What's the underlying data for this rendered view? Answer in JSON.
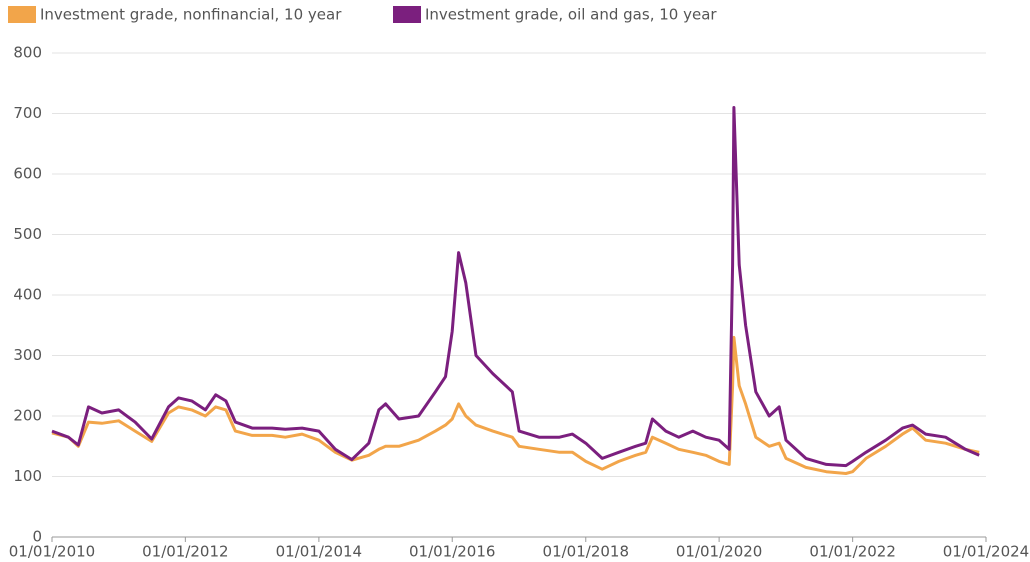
{
  "chart_data": {
    "type": "line",
    "x": [
      "2010-01-01",
      "2010-04-01",
      "2010-05-25",
      "2010-07-20",
      "2010-10-01",
      "2011-01-01",
      "2011-04-01",
      "2011-07-01",
      "2011-10-01",
      "2011-11-25",
      "2012-02-05",
      "2012-04-20",
      "2012-06-15",
      "2012-08-10",
      "2012-10-01",
      "2013-01-01",
      "2013-04-20",
      "2013-07-01",
      "2013-10-01",
      "2014-01-01",
      "2014-04-01",
      "2014-07-01",
      "2014-10-01",
      "2014-11-25",
      "2015-01-01",
      "2015-03-15",
      "2015-07-01",
      "2015-10-01",
      "2015-11-25",
      "2016-01-01",
      "2016-02-05",
      "2016-03-15",
      "2016-05-10",
      "2016-08-10",
      "2016-11-25",
      "2017-01-01",
      "2017-04-20",
      "2017-08-10",
      "2017-10-20",
      "2018-01-01",
      "2018-04-01",
      "2018-07-01",
      "2018-10-01",
      "2018-11-25",
      "2019-01-01",
      "2019-03-15",
      "2019-05-25",
      "2019-08-10",
      "2019-10-20",
      "2020-01-01",
      "2020-02-25",
      "2020-03-15",
      "2020-03-22",
      "2020-04-20",
      "2020-05-25",
      "2020-07-20",
      "2020-10-01",
      "2020-11-25",
      "2021-01-01",
      "2021-04-20",
      "2021-08-10",
      "2021-11-25",
      "2022-01-01",
      "2022-03-15",
      "2022-07-01",
      "2022-10-01",
      "2022-11-25",
      "2023-02-05",
      "2023-05-25",
      "2023-09-10",
      "2023-11-25"
    ],
    "series": [
      {
        "name": "Investment grade, nonfinancial, 10 year",
        "color": "#f2a54a",
        "values": [
          172,
          165,
          150,
          190,
          188,
          192,
          175,
          158,
          205,
          215,
          210,
          200,
          215,
          210,
          175,
          168,
          168,
          165,
          170,
          160,
          140,
          127,
          135,
          145,
          150,
          150,
          160,
          175,
          185,
          195,
          220,
          200,
          185,
          175,
          165,
          150,
          145,
          140,
          140,
          125,
          112,
          125,
          135,
          140,
          165,
          155,
          145,
          140,
          135,
          125,
          120,
          250,
          330,
          250,
          220,
          165,
          150,
          155,
          130,
          115,
          108,
          105,
          108,
          130,
          150,
          170,
          180,
          160,
          155,
          145,
          140
        ]
      },
      {
        "name": "Investment grade, oil and gas, 10 year",
        "color": "#7b1f7e",
        "values": [
          175,
          165,
          152,
          215,
          205,
          210,
          190,
          162,
          215,
          230,
          225,
          210,
          235,
          225,
          190,
          180,
          180,
          178,
          180,
          175,
          145,
          128,
          155,
          210,
          220,
          195,
          200,
          240,
          265,
          340,
          470,
          420,
          300,
          270,
          240,
          175,
          165,
          165,
          170,
          155,
          130,
          140,
          150,
          155,
          195,
          175,
          165,
          175,
          165,
          160,
          145,
          450,
          710,
          450,
          350,
          240,
          200,
          215,
          160,
          130,
          120,
          118,
          125,
          140,
          160,
          180,
          185,
          170,
          165,
          145,
          135
        ]
      }
    ],
    "xlim": [
      "2010-01-01",
      "2024-01-01"
    ],
    "xticks": [
      {
        "value": "2010-01-01",
        "label": "01/01/2010"
      },
      {
        "value": "2012-01-01",
        "label": "01/01/2012"
      },
      {
        "value": "2014-01-01",
        "label": "01/01/2014"
      },
      {
        "value": "2016-01-01",
        "label": "01/01/2016"
      },
      {
        "value": "2018-01-01",
        "label": "01/01/2018"
      },
      {
        "value": "2020-01-01",
        "label": "01/01/2020"
      },
      {
        "value": "2022-01-01",
        "label": "01/01/2022"
      },
      {
        "value": "2024-01-01",
        "label": "01/01/2024"
      }
    ],
    "ylim": [
      0,
      800
    ],
    "yticks": [
      0,
      100,
      200,
      300,
      400,
      500,
      600,
      700,
      800
    ],
    "grid": true
  }
}
